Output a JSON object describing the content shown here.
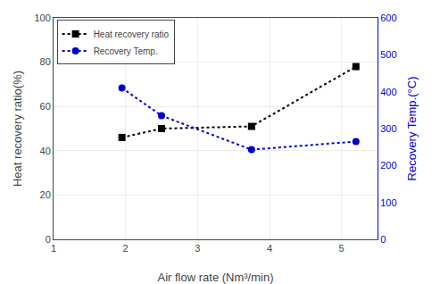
{
  "chart_data": {
    "type": "line",
    "xlabel": "Air flow rate (Nm³/min)",
    "ylabel": "Heat recovery ratio(%)",
    "y2label": "Recovery Temp.(°C)",
    "x": [
      1.95,
      2.5,
      3.75,
      5.2
    ],
    "series": [
      {
        "name": "Heat recovery ratio",
        "color": "#000000",
        "values": [
          46,
          50,
          51,
          78
        ],
        "marker": "square",
        "line_style": "dotted"
      },
      {
        "name": "Recovery Temp.",
        "color": "#0000cc",
        "values": [
          410,
          335,
          243,
          265
        ],
        "marker": "circle",
        "line_style": "dotted",
        "axis": "y2"
      }
    ],
    "xlim": [
      1,
      5.5
    ],
    "xticks": [
      1,
      2,
      3,
      4,
      5
    ],
    "ylim": [
      0,
      100
    ],
    "yticks": [
      0,
      20,
      40,
      60,
      80,
      100
    ],
    "y2lim": [
      0,
      600
    ],
    "y2ticks": [
      0,
      100,
      200,
      300,
      400,
      500,
      600
    ],
    "grid": true,
    "legend": "upper left"
  }
}
